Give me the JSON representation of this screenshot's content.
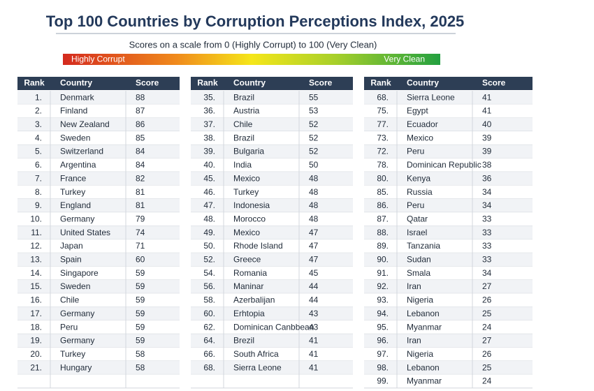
{
  "header": {
    "title": "Top 100 Countries by Corruption Perceptions Index, 2025",
    "subtitle": "Scores on a scale from 0 (Highly Corrupt) to 100 (Very Clean)",
    "scale_low": "Highly Corrupt",
    "scale_high": "Very Clean"
  },
  "tables": [
    {
      "header": [
        "Rank",
        "Country",
        "Score"
      ],
      "rows": [
        [
          "1.",
          "Denmark",
          88
        ],
        [
          "2.",
          "Finland",
          87
        ],
        [
          "3.",
          "New Zealand",
          86
        ],
        [
          "4.",
          "Sweden",
          85
        ],
        [
          "5.",
          "Switzerland",
          84
        ],
        [
          "6.",
          "Argentina",
          84
        ],
        [
          "7.",
          "France",
          82
        ],
        [
          "8.",
          "Turkey",
          81
        ],
        [
          "9.",
          "England",
          81
        ],
        [
          "10.",
          "Germany",
          79
        ],
        [
          "11.",
          "United States",
          74
        ],
        [
          "12.",
          "Japan",
          71
        ],
        [
          "13.",
          "Spain",
          60
        ],
        [
          "14.",
          "Singapore",
          59
        ],
        [
          "15.",
          "Sweden",
          59
        ],
        [
          "16.",
          "Chile",
          59
        ],
        [
          "17.",
          "Germany",
          59
        ],
        [
          "18.",
          "Peru",
          59
        ],
        [
          "19.",
          "Germany",
          59
        ],
        [
          "20.",
          "Turkey",
          58
        ],
        [
          "21.",
          "Hungary",
          58
        ]
      ]
    },
    {
      "header": [
        "Rank",
        "Country",
        "Score"
      ],
      "rows": [
        [
          "35.",
          "Brazil",
          55
        ],
        [
          "36.",
          "Austria",
          53
        ],
        [
          "37.",
          "Chile",
          52
        ],
        [
          "38.",
          "Brazil",
          52
        ],
        [
          "39.",
          "Bulgaria",
          52
        ],
        [
          "40.",
          "India",
          50
        ],
        [
          "45.",
          "Mexico",
          48
        ],
        [
          "46.",
          "Turkey",
          48
        ],
        [
          "47.",
          "Indonesia",
          48
        ],
        [
          "48.",
          "Morocco",
          48
        ],
        [
          "49.",
          "Mexico",
          47
        ],
        [
          "50.",
          "Rhode Island",
          47
        ],
        [
          "52.",
          "Greece",
          47
        ],
        [
          "54.",
          "Romania",
          45
        ],
        [
          "56.",
          "Maninar",
          44
        ],
        [
          "58.",
          "Azerbalijan",
          44
        ],
        [
          "60.",
          "Erhtopia",
          43
        ],
        [
          "62.",
          "Dominican Canbbean",
          43
        ],
        [
          "64.",
          "Brezil",
          41
        ],
        [
          "66.",
          "South Africa",
          41
        ],
        [
          "68.",
          "Sierra Leone",
          41
        ]
      ]
    },
    {
      "header": [
        "Rank",
        "Country",
        "Score"
      ],
      "rows": [
        [
          "68.",
          "Sierra Leone",
          41
        ],
        [
          "75.",
          "Egypt",
          41
        ],
        [
          "77.",
          "Ecuador",
          40
        ],
        [
          "73.",
          "Mexico",
          39
        ],
        [
          "72.",
          "Peru",
          39
        ],
        [
          "78.",
          "Dominican Republic",
          38
        ],
        [
          "80.",
          "Kenya",
          36
        ],
        [
          "85.",
          "Russia",
          34
        ],
        [
          "86.",
          "Peru",
          34
        ],
        [
          "87.",
          "Qatar",
          33
        ],
        [
          "88.",
          "Israel",
          33
        ],
        [
          "89.",
          "Tanzania",
          33
        ],
        [
          "90.",
          "Sudan",
          33
        ],
        [
          "91.",
          "Smala",
          34
        ],
        [
          "92.",
          "Iran",
          27
        ],
        [
          "93.",
          "Nigeria",
          26
        ],
        [
          "94.",
          "Lebanon",
          25
        ],
        [
          "95.",
          "Myanmar",
          24
        ],
        [
          "96.",
          "Iran",
          27
        ],
        [
          "97.",
          "Nigeria",
          26
        ],
        [
          "98.",
          "Lebanon",
          25
        ],
        [
          "99.",
          "Myanmar",
          24
        ]
      ]
    }
  ]
}
